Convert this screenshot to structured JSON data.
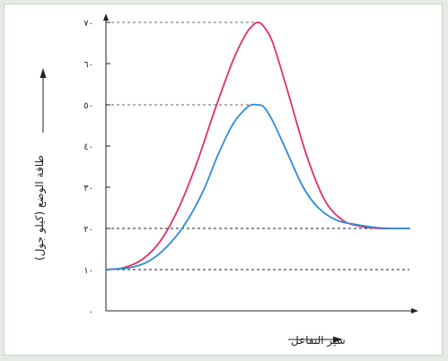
{
  "chart_data": {
    "type": "line",
    "xlabel": "سير التفاعل",
    "ylabel": "طاقة الوضع (كيلو جول)",
    "ylim": [
      0,
      70
    ],
    "yticks": [
      0,
      10,
      20,
      30,
      40,
      50,
      60,
      70
    ],
    "ytick_labels": [
      "٠",
      "١٠",
      "٢٠",
      "٣٠",
      "٤٠",
      "٥٠",
      "٦٠",
      "٧٠"
    ],
    "x_ticks_shown": false,
    "xlim": [
      0,
      100
    ],
    "reference_lines": [
      {
        "y": 70,
        "style": "dashed",
        "extent": "to-peak"
      },
      {
        "y": 50,
        "style": "dashed",
        "extent": "to-peak"
      },
      {
        "y": 20,
        "style": "dashed",
        "extent": "full"
      },
      {
        "y": 10,
        "style": "dashed",
        "extent": "full"
      }
    ],
    "series": [
      {
        "color": "#e0306a",
        "x": [
          0,
          6,
          12,
          18,
          24,
          30,
          36,
          42,
          46,
          48,
          50,
          52,
          55,
          60,
          66,
          72,
          78,
          84,
          90,
          95,
          100
        ],
        "y": [
          10,
          10.5,
          12.5,
          17,
          25,
          36,
          49,
          61,
          67,
          69,
          70,
          69,
          65,
          53,
          38,
          27,
          22,
          20.5,
          20,
          20,
          20
        ]
      },
      {
        "color": "#2e8bd8",
        "x": [
          0,
          8,
          14,
          20,
          26,
          32,
          37,
          42,
          46,
          48,
          50,
          52,
          55,
          60,
          65,
          70,
          76,
          82,
          88,
          94,
          100
        ],
        "y": [
          10,
          10.5,
          12,
          15.5,
          21,
          29,
          38,
          45.5,
          49,
          50,
          50,
          49.5,
          46,
          38,
          30,
          25,
          22,
          21,
          20.3,
          20,
          20
        ]
      }
    ],
    "legend": "none",
    "grid": false
  }
}
